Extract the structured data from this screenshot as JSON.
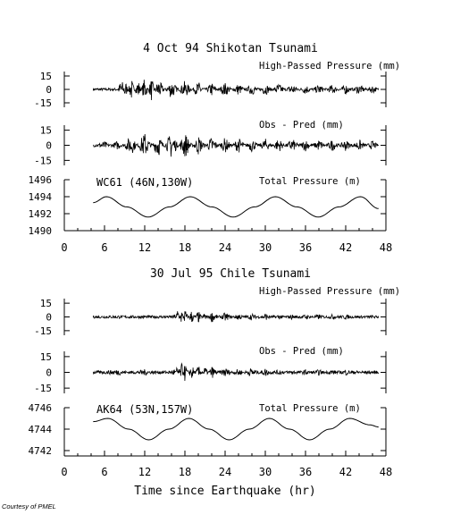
{
  "courtesy": "Courtesy of PMEL",
  "chart_data": [
    {
      "type": "line",
      "title": "4 Oct 94 Shikotan Tsunami",
      "xlabel": "",
      "xlim": [
        0,
        48
      ],
      "xticks": [
        0,
        6,
        12,
        18,
        24,
        30,
        36,
        42,
        48
      ],
      "station_label": "WC61 (46N,130W)",
      "panels": [
        {
          "label": "High-Passed Pressure (mm)",
          "ylim": [
            -20,
            20
          ],
          "yticks": [
            15,
            0,
            -15
          ],
          "series": [
            {
              "x": [
                4.3,
                8.0,
                8.6,
                9,
                10,
                11,
                12,
                13,
                14,
                16,
                18,
                20,
                22,
                24,
                26,
                28,
                30,
                32,
                34,
                36,
                38,
                40,
                42,
                44,
                46,
                46.9
              ],
              "y": [
                0.0,
                1.0,
                15.0,
                -14.0,
                13.0,
                -12.0,
                14.0,
                -13.0,
                12.0,
                -11.0,
                10.0,
                -9.0,
                8.0,
                -8.0,
                7.0,
                -7.0,
                7.0,
                -7.0,
                7.0,
                -6.0,
                6.0,
                -6.0,
                6.0,
                -6.0,
                5.0,
                0.0
              ]
            }
          ]
        },
        {
          "label": "Obs - Pred (mm)",
          "ylim": [
            -20,
            20
          ],
          "yticks": [
            15,
            0,
            -15
          ],
          "series": [
            {
              "x": [
                4.3,
                6,
                8,
                10,
                12,
                14,
                16,
                18,
                20,
                22,
                24,
                26,
                28,
                30,
                32,
                34,
                36,
                38,
                40,
                42,
                44,
                46,
                46.9
              ],
              "y": [
                0.0,
                4.0,
                -5.0,
                10.0,
                -13.0,
                12.0,
                -14.0,
                13.0,
                -10.0,
                9.0,
                -8.0,
                8.0,
                -7.0,
                7.0,
                -7.0,
                7.0,
                -6.0,
                6.0,
                -6.0,
                6.0,
                -6.0,
                5.0,
                0.0
              ]
            }
          ]
        },
        {
          "label": "Total Pressure (m)",
          "ylim": [
            1490,
            1496
          ],
          "yticks": [
            1496,
            1494,
            1492,
            1490
          ],
          "series": [
            {
              "x": [
                4.3,
                6.3,
                9.3,
                12.5,
                15.7,
                18.8,
                22.0,
                25.2,
                28.4,
                31.5,
                34.7,
                37.9,
                41.0,
                44.2,
                46.9
              ],
              "y": [
                1493.3,
                1494.0,
                1492.8,
                1491.6,
                1492.8,
                1494.0,
                1492.8,
                1491.6,
                1492.8,
                1494.0,
                1492.8,
                1491.6,
                1492.8,
                1494.0,
                1492.6
              ]
            }
          ]
        }
      ]
    },
    {
      "type": "line",
      "title": "30 Jul 95 Chile Tsunami",
      "xlabel": "Time since Earthquake (hr)",
      "xlim": [
        0,
        48
      ],
      "xticks": [
        0,
        6,
        12,
        18,
        24,
        30,
        36,
        42,
        48
      ],
      "station_label": "AK64 (53N,157W)",
      "panels": [
        {
          "label": "High-Passed Pressure (mm)",
          "ylim": [
            -20,
            20
          ],
          "yticks": [
            15,
            0,
            -15
          ],
          "series": [
            {
              "x": [
                4.3,
                8,
                12,
                15,
                16.5,
                17,
                17.5,
                18,
                19,
                20,
                21,
                22,
                24,
                26,
                28,
                30,
                32,
                34,
                36,
                38,
                40,
                42,
                44,
                46,
                46.9
              ],
              "y": [
                0.0,
                2.0,
                -2.0,
                2.0,
                -3.0,
                12.0,
                -10.0,
                9.0,
                -8.0,
                7.0,
                -6.0,
                6.0,
                -5.0,
                4.0,
                -4.0,
                4.0,
                -3.0,
                3.0,
                -3.0,
                3.0,
                -3.0,
                3.0,
                -2.0,
                2.0,
                0.0
              ]
            }
          ]
        },
        {
          "label": "Obs - Pred (mm)",
          "ylim": [
            -20,
            20
          ],
          "yticks": [
            15,
            0,
            -15
          ],
          "series": [
            {
              "x": [
                4.3,
                8,
                12,
                15,
                16.5,
                17,
                17.5,
                18,
                19,
                20,
                21,
                22,
                24,
                26,
                28,
                30,
                32,
                34,
                36,
                38,
                40,
                42,
                44,
                46,
                46.9
              ],
              "y": [
                0.0,
                3.0,
                -3.0,
                2.0,
                -4.0,
                12.0,
                -10.0,
                9.0,
                -8.0,
                7.0,
                -6.0,
                6.0,
                -5.0,
                4.0,
                -5.0,
                4.0,
                -3.0,
                3.0,
                -3.0,
                3.0,
                -3.0,
                3.0,
                -2.0,
                2.0,
                0.0
              ]
            }
          ]
        },
        {
          "label": "Total Pressure (m)",
          "ylim": [
            4741.5,
            4746
          ],
          "yticks": [
            4746,
            4744,
            4742
          ],
          "series": [
            {
              "x": [
                4.3,
                6.5,
                9.6,
                12.6,
                15.6,
                18.6,
                21.6,
                24.6,
                27.6,
                30.6,
                33.6,
                36.6,
                39.6,
                42.6,
                45.6,
                46.9
              ],
              "y": [
                4744.7,
                4745.0,
                4744.0,
                4743.0,
                4744.0,
                4745.0,
                4744.0,
                4743.0,
                4744.0,
                4745.0,
                4744.0,
                4743.0,
                4744.0,
                4745.0,
                4744.4,
                4744.2
              ]
            }
          ]
        }
      ]
    }
  ]
}
